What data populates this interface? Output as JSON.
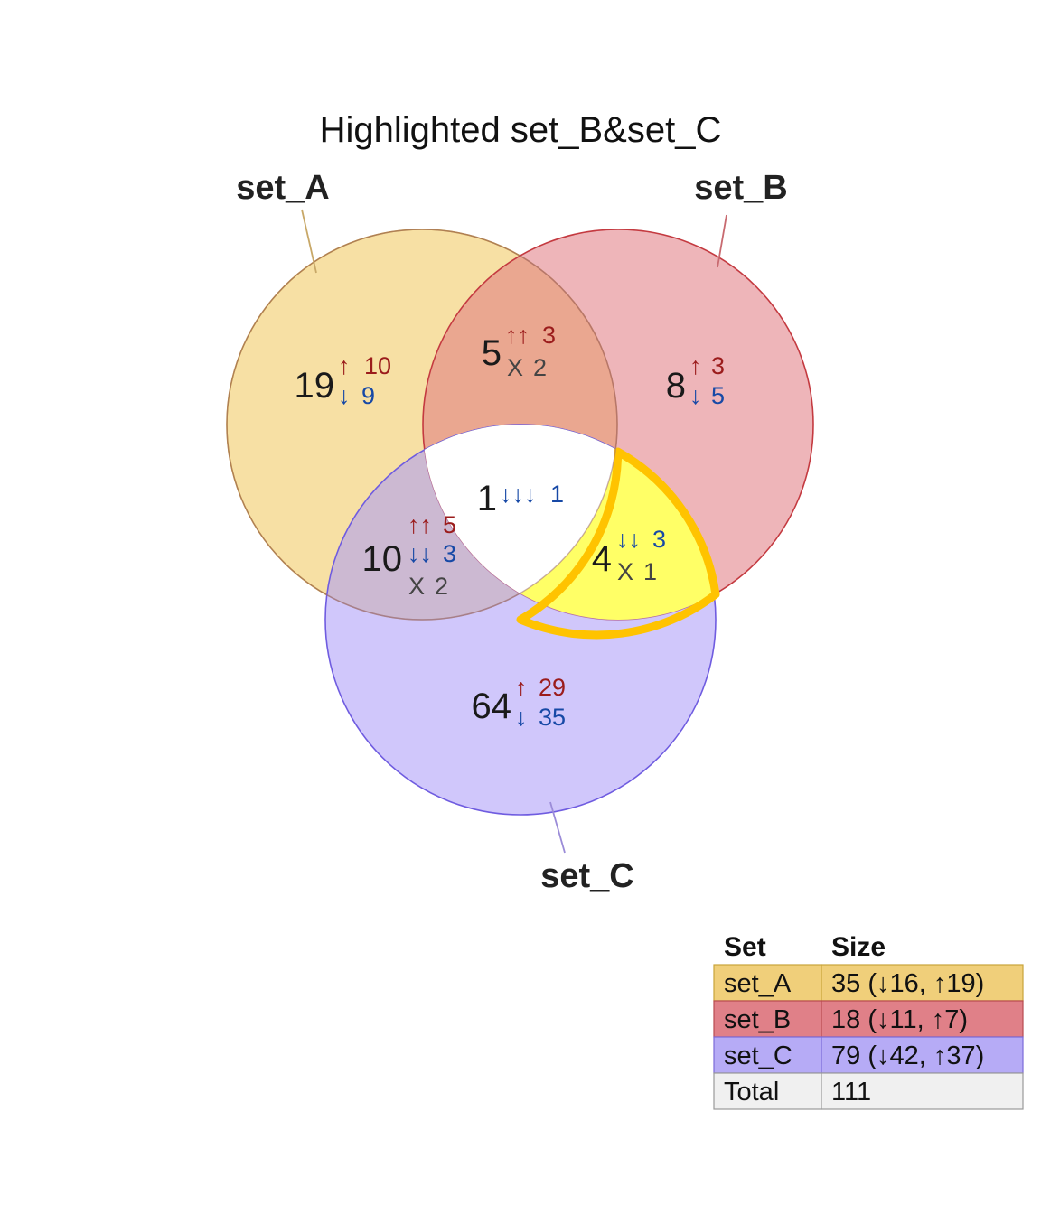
{
  "title": "Highlighted set_B&set_C",
  "sets": [
    {
      "name": "set_A",
      "color": "#f0c65a"
    },
    {
      "name": "set_B",
      "color": "#e0787f"
    },
    {
      "name": "set_C",
      "color": "#a999f8"
    }
  ],
  "highlight": {
    "region": "set_B&set_C",
    "fill": "#ffff66",
    "stroke": "#ffc300"
  },
  "regions": [
    {
      "id": "A_only",
      "count": "19",
      "lines": [
        {
          "kind": "up",
          "arrows": "↑",
          "n": "10"
        },
        {
          "kind": "down",
          "arrows": "↓",
          "n": "9"
        }
      ]
    },
    {
      "id": "AB",
      "count": "5",
      "lines": [
        {
          "kind": "up",
          "arrows": "↑↑",
          "n": "3"
        },
        {
          "kind": "mixed",
          "arrows": "X",
          "n": "2"
        }
      ]
    },
    {
      "id": "B_only",
      "count": "8",
      "lines": [
        {
          "kind": "up",
          "arrows": "↑",
          "n": "3"
        },
        {
          "kind": "down",
          "arrows": "↓",
          "n": "5"
        }
      ]
    },
    {
      "id": "ABC",
      "count": "1",
      "lines": [
        {
          "kind": "down",
          "arrows": "↓↓↓",
          "n": "1"
        }
      ]
    },
    {
      "id": "AC",
      "count": "10",
      "lines": [
        {
          "kind": "up",
          "arrows": "↑↑",
          "n": "5"
        },
        {
          "kind": "down",
          "arrows": "↓↓",
          "n": "3"
        },
        {
          "kind": "mixed",
          "arrows": "X",
          "n": "2"
        }
      ]
    },
    {
      "id": "BC",
      "count": "4",
      "lines": [
        {
          "kind": "down",
          "arrows": "↓↓",
          "n": "3"
        },
        {
          "kind": "mixed",
          "arrows": "X",
          "n": "1"
        }
      ]
    },
    {
      "id": "C_only",
      "count": "64",
      "lines": [
        {
          "kind": "up",
          "arrows": "↑",
          "n": "29"
        },
        {
          "kind": "down",
          "arrows": "↓",
          "n": "35"
        }
      ]
    }
  ],
  "table": {
    "headers": [
      "Set",
      "Size"
    ],
    "rows": [
      {
        "set": "set_A",
        "size": "35 (↓16, ↑19)",
        "color": "#f0cf7a"
      },
      {
        "set": "set_B",
        "size": "18 (↓11, ↑7)",
        "color": "#e08088"
      },
      {
        "set": "set_C",
        "size": "79 (↓42, ↑37)",
        "color": "#b6abf6"
      },
      {
        "set": "Total",
        "size": "111",
        "color": "#f0f0f0"
      }
    ]
  }
}
